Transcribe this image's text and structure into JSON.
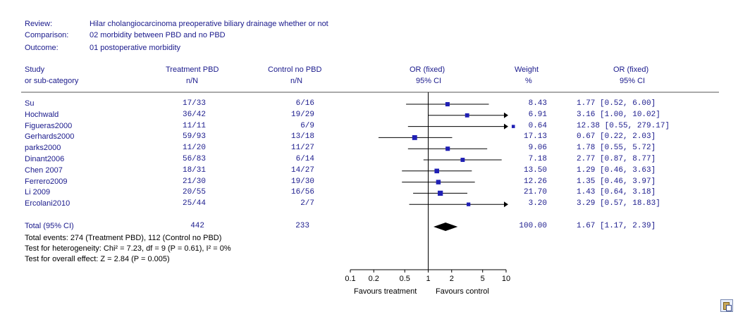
{
  "meta": {
    "review_label": "Review:",
    "review": "Hilar cholangiocarcinoma preoperative biliary drainage whether or not",
    "comparison_label": "Comparison:",
    "comparison": "02 morbidity between PBD  and no PBD",
    "outcome_label": "Outcome:",
    "outcome": "01 postoperative morbidity"
  },
  "headers": {
    "study1": "Study",
    "study2": "or sub-category",
    "treat1": "Treatment PBD",
    "treat2": "n/N",
    "control1": "Control no PBD",
    "control2": "n/N",
    "or1": "OR (fixed)",
    "or2": "95% CI",
    "weight1": "Weight",
    "weight2": "%",
    "orr1": "OR (fixed)",
    "orr2": "95% CI"
  },
  "chart_data": {
    "type": "forest",
    "xscale": "log",
    "xlim": [
      0.1,
      10
    ],
    "reference_line": 1,
    "ticks": [
      {
        "value": 0.1,
        "label": "0.1"
      },
      {
        "value": 0.2,
        "label": "0.2"
      },
      {
        "value": 0.5,
        "label": "0.5"
      },
      {
        "value": 1,
        "label": "1"
      },
      {
        "value": 2,
        "label": "2"
      },
      {
        "value": 5,
        "label": "5"
      },
      {
        "value": 10,
        "label": "10"
      }
    ],
    "favours_left": "Favours treatment",
    "favours_right": "Favours control",
    "marker_color": "#1f1fb4",
    "studies": [
      {
        "name": "Su",
        "treatment": "17/33",
        "control": "6/16",
        "or": 1.77,
        "lo": 0.52,
        "hi": 6.0,
        "weight": "8.43",
        "ci_text": "1.77 [0.52, 6.00]"
      },
      {
        "name": "Hochwald",
        "treatment": "36/42",
        "control": "19/29",
        "or": 3.16,
        "lo": 1.0,
        "hi": 10.02,
        "weight": "6.91",
        "ci_text": "3.16 [1.00, 10.02]"
      },
      {
        "name": "Figueras2000",
        "treatment": "11/11",
        "control": "6/9",
        "or": 12.38,
        "lo": 0.55,
        "hi": 279.17,
        "weight": "0.64",
        "ci_text": "12.38 [0.55, 279.17]"
      },
      {
        "name": "Gerhards2000",
        "treatment": "59/93",
        "control": "13/18",
        "or": 0.67,
        "lo": 0.22,
        "hi": 2.03,
        "weight": "17.13",
        "ci_text": "0.67 [0.22, 2.03]"
      },
      {
        "name": "parks2000",
        "treatment": "11/20",
        "control": "11/27",
        "or": 1.78,
        "lo": 0.55,
        "hi": 5.72,
        "weight": "9.06",
        "ci_text": "1.78 [0.55, 5.72]"
      },
      {
        "name": "Dinant2006",
        "treatment": "56/83",
        "control": "6/14",
        "or": 2.77,
        "lo": 0.87,
        "hi": 8.77,
        "weight": "7.18",
        "ci_text": "2.77 [0.87, 8.77]"
      },
      {
        "name": "Chen 2007",
        "treatment": "18/31",
        "control": "14/27",
        "or": 1.29,
        "lo": 0.46,
        "hi": 3.63,
        "weight": "13.50",
        "ci_text": "1.29 [0.46, 3.63]"
      },
      {
        "name": "Ferrero2009",
        "treatment": "21/30",
        "control": "19/30",
        "or": 1.35,
        "lo": 0.46,
        "hi": 3.97,
        "weight": "12.26",
        "ci_text": "1.35 [0.46, 3.97]"
      },
      {
        "name": "Li 2009",
        "treatment": "20/55",
        "control": "16/56",
        "or": 1.43,
        "lo": 0.64,
        "hi": 3.18,
        "weight": "21.70",
        "ci_text": "1.43 [0.64, 3.18]"
      },
      {
        "name": "Ercolani2010",
        "treatment": "25/44",
        "control": "2/7",
        "or": 3.29,
        "lo": 0.57,
        "hi": 18.83,
        "weight": "3.20",
        "ci_text": "3.29 [0.57, 18.83]"
      }
    ],
    "total": {
      "name": "Total (95% CI)",
      "treatment": "442",
      "control": "233",
      "or": 1.67,
      "lo": 1.17,
      "hi": 2.39,
      "weight": "100.00",
      "ci_text": "1.67 [1.17, 2.39]"
    },
    "footnotes": [
      "Total events: 274 (Treatment PBD), 112 (Control no PBD)",
      "Test for heterogeneity: Chi² = 7.23, df = 9 (P = 0.61), I² = 0%",
      "Test for overall effect: Z = 2.84 (P = 0.005)"
    ]
  },
  "icons": {
    "corner": "paste-icon"
  }
}
